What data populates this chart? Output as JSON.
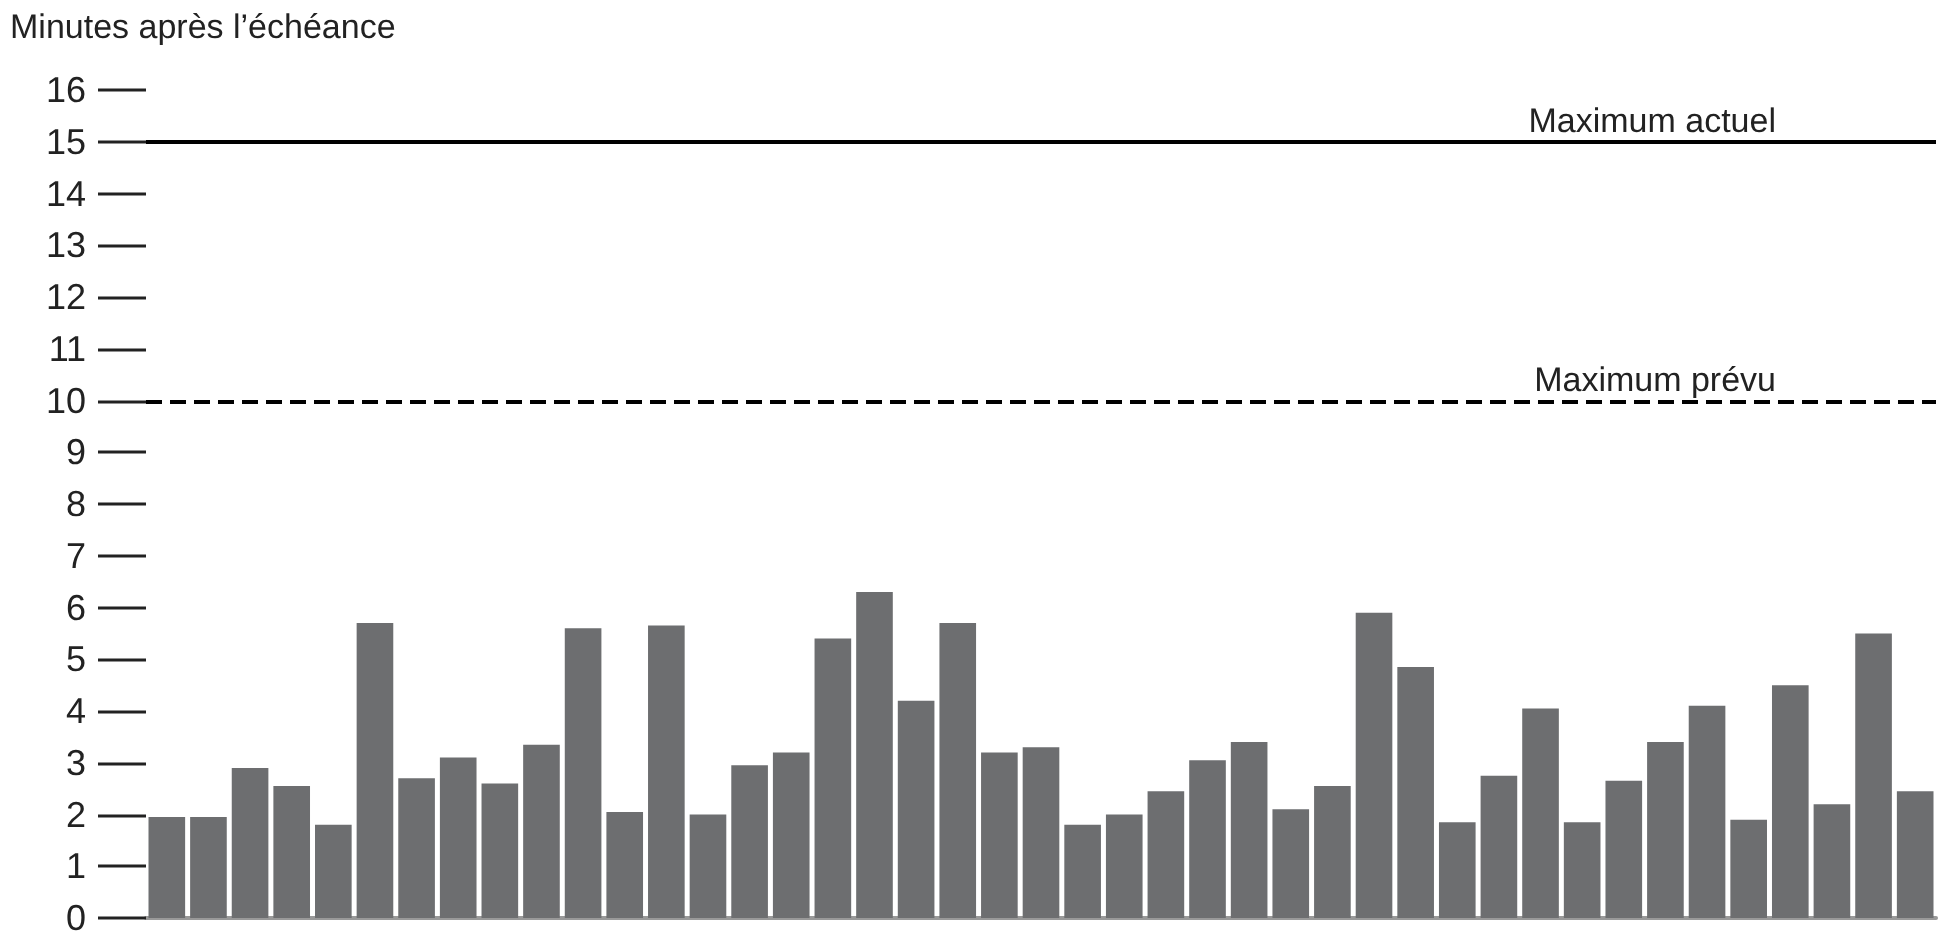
{
  "chart_data": {
    "type": "bar",
    "ylabel": "Minutes après l’échéance",
    "categories": [
      null,
      null,
      null,
      null,
      null,
      null,
      null,
      null,
      null,
      null,
      null,
      null,
      null,
      null,
      null,
      null,
      null,
      null,
      null,
      null,
      null,
      null,
      null,
      null,
      null,
      null,
      null,
      null,
      null,
      null,
      null,
      null,
      null,
      null,
      null,
      null,
      null,
      null,
      null,
      null,
      null,
      null,
      null
    ],
    "values": [
      1.95,
      1.95,
      2.9,
      2.55,
      1.8,
      5.7,
      2.7,
      3.1,
      2.6,
      3.35,
      5.6,
      2.05,
      5.65,
      2.0,
      2.95,
      3.2,
      5.4,
      6.3,
      4.2,
      5.7,
      3.2,
      3.3,
      1.8,
      2.0,
      2.45,
      3.05,
      3.4,
      2.1,
      2.55,
      5.9,
      4.85,
      1.85,
      2.75,
      4.05,
      1.85,
      2.65,
      3.4,
      4.1,
      1.9,
      4.5,
      2.2,
      5.5,
      2.45
    ],
    "color": "#6d6e70",
    "ylim": [
      0,
      16
    ],
    "yticks": [
      0,
      1,
      2,
      3,
      4,
      5,
      6,
      7,
      8,
      9,
      10,
      11,
      12,
      13,
      14,
      15,
      16
    ],
    "ref_lines": [
      {
        "axis": "y",
        "value": 15,
        "label": "Maximum actuel",
        "color": "#000000",
        "line_style": "solid"
      },
      {
        "axis": "y",
        "value": 10,
        "label": "Maximum prévu",
        "color": "#000000",
        "line_style": "dashed"
      }
    ],
    "grid": false
  }
}
